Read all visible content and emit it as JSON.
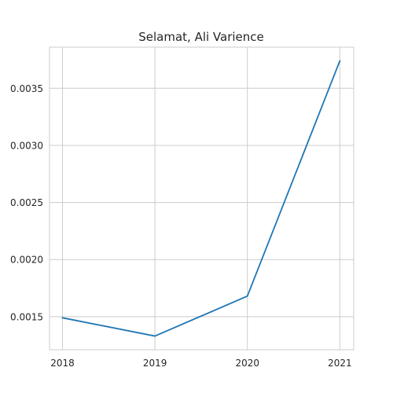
{
  "chart_data": {
    "type": "line",
    "title": "Selamat, Ali Varience",
    "xlabel": "",
    "ylabel": "",
    "x": [
      2018,
      2019,
      2020,
      2021
    ],
    "x_tick_labels": [
      "2018",
      "2019",
      "2020",
      "2021"
    ],
    "series": [
      {
        "values": [
          0.00149,
          0.00133,
          0.00168,
          0.00374
        ],
        "color": "#1f77b4"
      }
    ],
    "xlim": [
      2017.86,
      2021.15
    ],
    "ylim": [
      0.00121,
      0.00386
    ],
    "y_ticks": [
      0.0015,
      0.002,
      0.0025,
      0.003,
      0.0035
    ],
    "y_tick_labels": [
      "0.0015",
      "0.0020",
      "0.0025",
      "0.0030",
      "0.0035"
    ],
    "grid": true,
    "legend": "none",
    "colors": {
      "line": "#1f77b4",
      "grid": "#cccccc",
      "spine": "#cccccc",
      "text": "#262626",
      "background": "#ffffff"
    }
  }
}
